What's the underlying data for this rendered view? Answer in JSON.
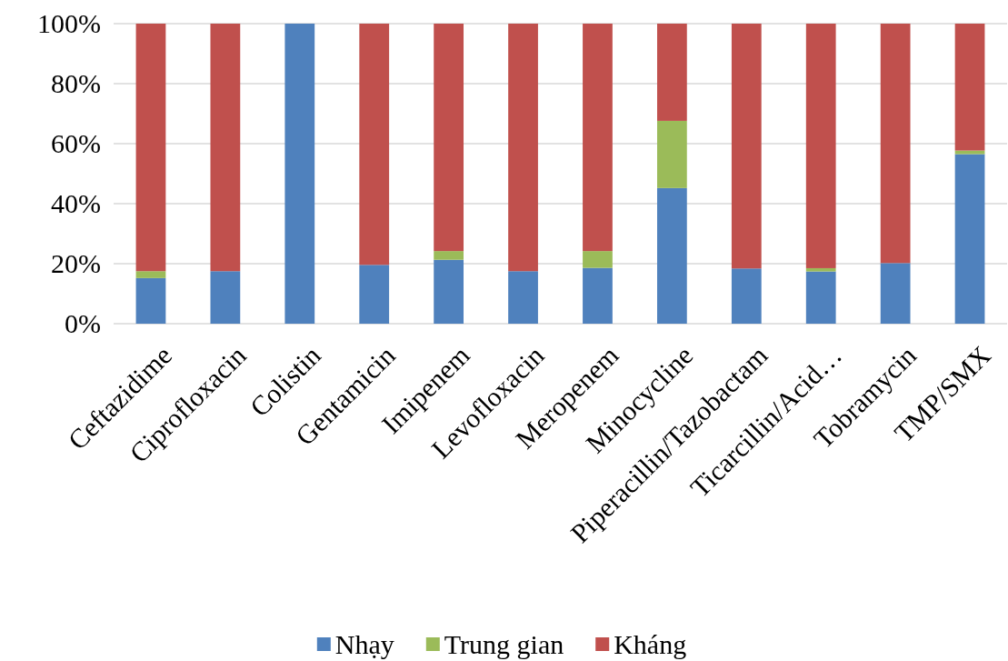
{
  "chart_data": {
    "type": "bar",
    "stacked": true,
    "categories": [
      "Ceftazidime",
      "Ciprofloxacin",
      "Colistin",
      "Gentamicin",
      "Imipenem",
      "Levofloxacin",
      "Meropenem",
      "Minocycline",
      "Piperacillin/Tazobactam",
      "Ticarcillin/Acid…",
      "Tobramycin",
      "TMP/SMX"
    ],
    "series": [
      {
        "name": "Nhạy",
        "color": "#4f81bd",
        "values": [
          15.2,
          17.5,
          100,
          19.6,
          21.3,
          17.5,
          18.6,
          45.2,
          18.4,
          17.4,
          20.2,
          56.5
        ]
      },
      {
        "name": "Trung gian",
        "color": "#9bbb59",
        "values": [
          2.3,
          0,
          0,
          0,
          2.9,
          0,
          5.6,
          22.4,
          0,
          1.1,
          0,
          1.2
        ]
      },
      {
        "name": "Kháng",
        "color": "#c0504d",
        "values": [
          82.5,
          82.5,
          0,
          80.4,
          75.8,
          82.5,
          75.8,
          32.4,
          81.6,
          81.5,
          79.8,
          42.3
        ]
      }
    ],
    "ylim": [
      0,
      100
    ],
    "yticks": [
      {
        "value": 0,
        "label": "0%"
      },
      {
        "value": 20,
        "label": "20%"
      },
      {
        "value": 40,
        "label": "40%"
      },
      {
        "value": 60,
        "label": "60%"
      },
      {
        "value": 80,
        "label": "80%"
      },
      {
        "value": 100,
        "label": "100%"
      }
    ],
    "grid": "y",
    "legend": "bottom"
  }
}
